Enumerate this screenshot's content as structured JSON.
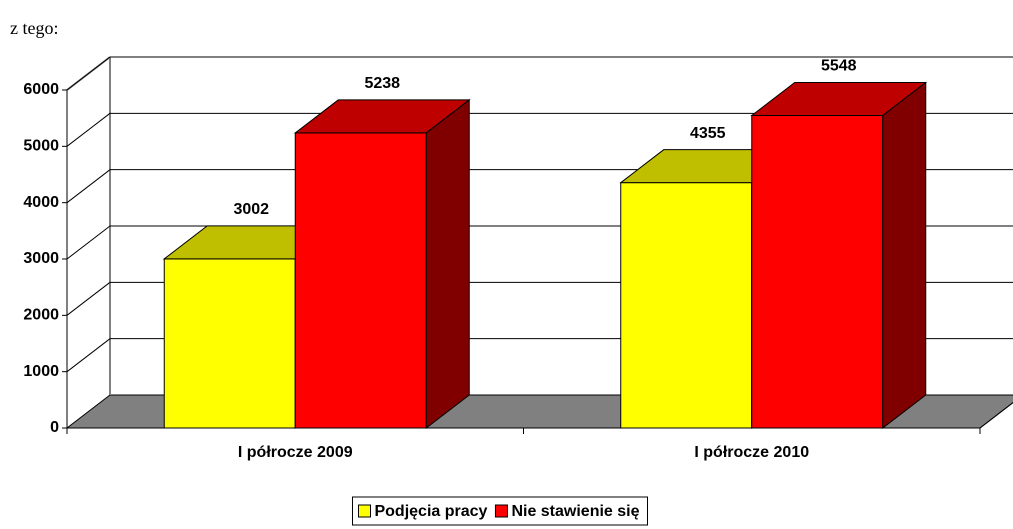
{
  "header": {
    "text": "z tego:"
  },
  "chart_data": {
    "type": "bar3d",
    "categories": [
      "I półrocze 2009",
      "I półrocze 2010"
    ],
    "series": [
      {
        "name": "Podjęcia pracy",
        "color": "#ffff00",
        "values": [
          3002,
          4355
        ]
      },
      {
        "name": "Nie stawienie się",
        "color": "#ff0000",
        "values": [
          5238,
          5548
        ]
      }
    ],
    "ylim": [
      0,
      6000
    ],
    "yticks": [
      0,
      1000,
      2000,
      3000,
      4000,
      5000,
      6000
    ],
    "grid": true,
    "legend": "bottom"
  }
}
